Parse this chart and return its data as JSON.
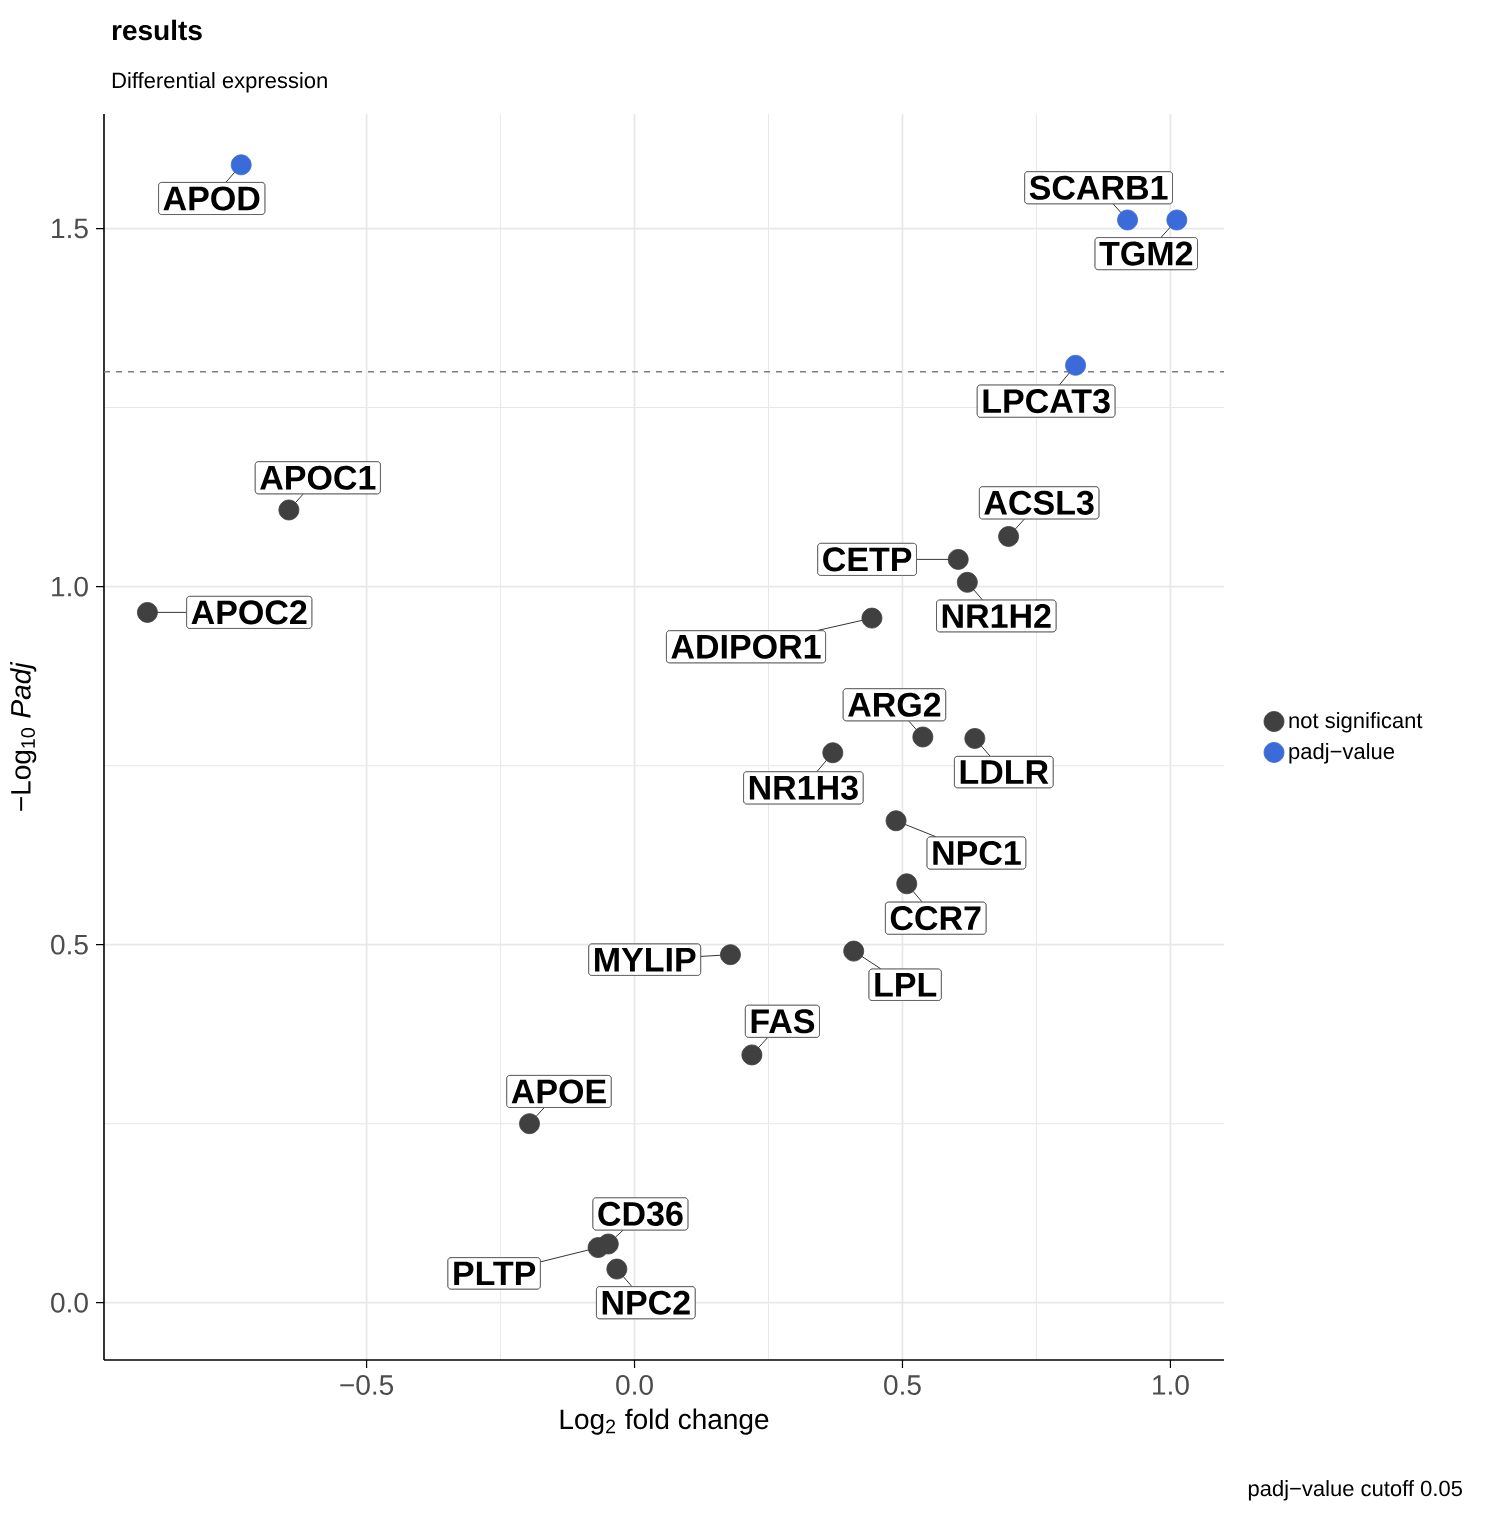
{
  "chart_data": {
    "type": "scatter",
    "title": "results",
    "subtitle": "Differential expression",
    "xlabel": "Log$_{2}$ fold change",
    "ylabel": "−Log$_{10}$ *Padj*",
    "annotations": [
      "padj−value cutoff 0.05"
    ],
    "xlim": [
      -0.99,
      1.1
    ],
    "ylim": [
      -0.08,
      1.66
    ],
    "xticks": [
      {
        "value": -0.5,
        "label": "−0.5"
      },
      {
        "value": 0,
        "label": "0.0"
      },
      {
        "value": 0.5,
        "label": "0.5"
      },
      {
        "value": 1,
        "label": "1.0"
      }
    ],
    "yticks": [
      {
        "value": 0,
        "label": "0.0"
      },
      {
        "value": 0.5,
        "label": "0.5"
      },
      {
        "value": 1,
        "label": "1.0"
      },
      {
        "value": 1.5,
        "label": "1.5"
      }
    ],
    "grid": true,
    "legend": "right",
    "marker": "circle",
    "ref_lines": [
      {
        "axis": "y",
        "value": 1.3,
        "color": "#7f7f7f",
        "line_style": "dashed"
      }
    ],
    "series": [
      {
        "name": "not significant",
        "color": "#404040",
        "x": [
          -0.645,
          -0.909,
          0.698,
          0.604,
          0.621,
          0.443,
          0.538,
          0.635,
          0.37,
          0.488,
          0.508,
          0.409,
          0.179,
          0.219,
          -0.196,
          -0.049,
          -0.068,
          -0.033
        ],
        "values": [
          1.107,
          0.964,
          1.07,
          1.038,
          1.006,
          0.956,
          0.79,
          0.788,
          0.768,
          0.673,
          0.585,
          0.491,
          0.486,
          0.346,
          0.25,
          0.082,
          0.077,
          0.047
        ],
        "value_labels": [
          "APOC1",
          "APOC2",
          "ACSL3",
          "CETP",
          "NR1H2",
          "ADIPOR1",
          "ARG2",
          "LDLR",
          "NR1H3",
          "NPC1",
          "CCR7",
          "LPL",
          "MYLIP",
          "FAS",
          "APOE",
          "CD36",
          "PLTP",
          "NPC2"
        ]
      },
      {
        "name": "padj−value",
        "color": "#3a6bd9",
        "x": [
          -0.734,
          0.92,
          1.012,
          0.823
        ],
        "values": [
          1.589,
          1.512,
          1.512,
          1.309
        ],
        "value_labels": [
          "APOD",
          "SCARB1",
          "TGM2",
          "LPCAT3"
        ]
      }
    ]
  }
}
